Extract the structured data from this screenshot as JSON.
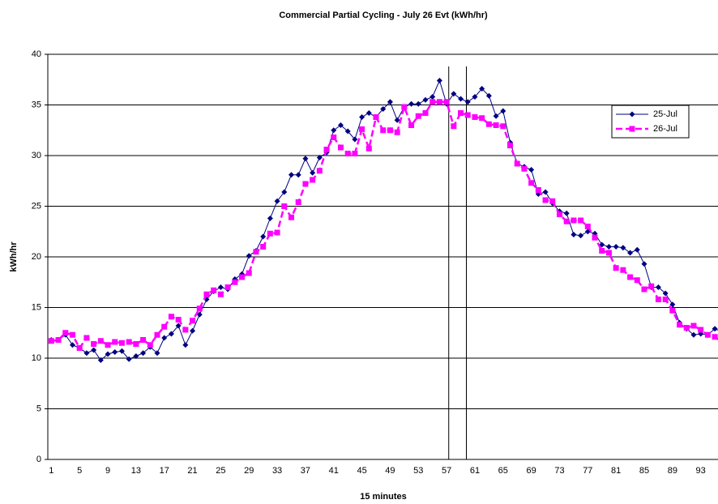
{
  "chart_data": {
    "type": "line",
    "title": "Commercial Partial Cycling - July 26 Evt (kWh/hr)",
    "x_label": "15 minutes",
    "y_label": "kWh/hr",
    "categories": [
      1,
      null,
      null,
      null,
      5,
      null,
      null,
      null,
      9,
      null,
      null,
      null,
      13,
      null,
      null,
      null,
      17,
      null,
      null,
      null,
      21,
      null,
      null,
      null,
      25,
      null,
      null,
      null,
      29,
      null,
      null,
      null,
      33,
      null,
      null,
      null,
      37,
      null,
      null,
      null,
      41,
      null,
      null,
      null,
      45,
      null,
      null,
      null,
      49,
      null,
      null,
      null,
      53,
      null,
      null,
      null,
      57,
      null,
      null,
      null,
      61,
      null,
      null,
      null,
      65,
      null,
      null,
      null,
      69,
      null,
      null,
      null,
      73,
      null,
      null,
      null,
      77,
      null,
      null,
      null,
      81,
      null,
      null,
      null,
      85,
      null,
      null,
      null,
      89,
      null,
      null,
      null,
      93,
      null,
      null,
      null
    ],
    "series": [
      {
        "name": "25-Jul",
        "color": "#000080",
        "values": [
          11.8,
          11.8,
          12.3,
          11.3,
          11.0,
          10.5,
          10.8,
          9.8,
          10.4,
          10.6,
          10.7,
          9.9,
          10.2,
          10.5,
          11.1,
          10.5,
          12.0,
          12.4,
          13.2,
          11.3,
          12.7,
          14.3,
          15.8,
          16.6,
          17.0,
          16.8,
          17.8,
          18.3,
          20.1,
          20.6,
          22.0,
          23.8,
          25.5,
          26.4,
          28.1,
          28.1,
          29.7,
          28.3,
          29.8,
          30.3,
          32.5,
          33.0,
          32.4,
          31.6,
          33.8,
          34.2,
          33.8,
          34.6,
          35.3,
          33.5,
          34.8,
          35.1,
          35.1,
          35.5,
          35.8,
          37.4,
          35.1,
          36.1,
          35.6,
          35.3,
          35.8,
          36.6,
          35.9,
          33.9,
          34.4,
          31.3,
          29.2,
          28.9,
          28.6,
          26.2,
          26.4,
          25.3,
          24.5,
          24.3,
          22.2,
          22.1,
          22.5,
          22.3,
          21.2,
          21.0,
          21.0,
          20.9,
          20.4,
          20.7,
          19.3,
          17.0,
          17.0,
          16.4,
          15.3,
          13.5,
          12.9,
          12.3,
          12.4,
          12.3,
          12.9,
          12.6
        ]
      },
      {
        "name": "26-Jul",
        "color": "#ff00ff",
        "values": [
          11.7,
          11.8,
          12.5,
          12.3,
          11.0,
          12.0,
          11.4,
          11.7,
          11.3,
          11.6,
          11.5,
          11.6,
          11.4,
          11.8,
          11.3,
          12.3,
          13.1,
          14.1,
          13.8,
          12.8,
          13.7,
          14.9,
          16.3,
          16.7,
          16.3,
          17.0,
          17.5,
          18.0,
          18.4,
          20.5,
          21.0,
          22.3,
          22.4,
          25.0,
          23.9,
          25.4,
          27.2,
          27.6,
          28.5,
          30.6,
          31.8,
          30.8,
          30.2,
          30.2,
          32.6,
          30.7,
          33.8,
          32.5,
          32.5,
          32.3,
          34.8,
          33.0,
          33.9,
          34.2,
          35.3,
          35.3,
          35.3,
          32.9,
          34.2,
          34.0,
          33.8,
          33.7,
          33.1,
          33.0,
          32.9,
          31.0,
          29.2,
          28.7,
          27.3,
          26.6,
          25.6,
          25.5,
          24.2,
          23.5,
          23.6,
          23.6,
          23.0,
          21.9,
          20.6,
          20.4,
          18.9,
          18.7,
          18.0,
          17.7,
          16.8,
          17.1,
          15.8,
          15.8,
          14.7,
          13.3,
          13.0,
          13.2,
          12.8,
          12.3,
          12.1,
          11.6
        ]
      }
    ],
    "event_lines": [
      57.3,
      59.8
    ],
    "ylim": [
      0,
      40
    ],
    "yticks": [
      0,
      5,
      10,
      15,
      20,
      25,
      30,
      35,
      40
    ],
    "grid": true
  }
}
